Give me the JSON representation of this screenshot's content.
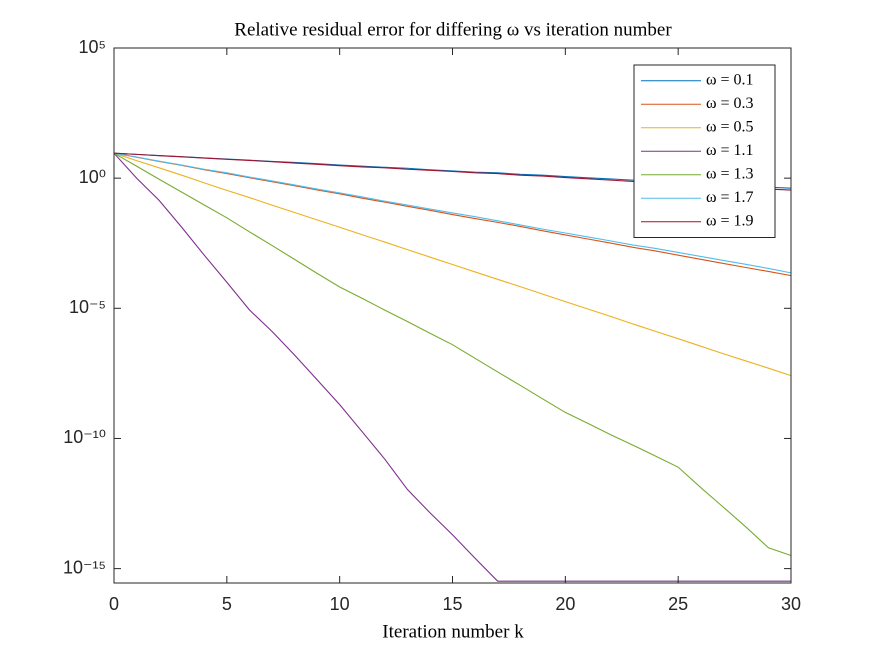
{
  "chart_data": {
    "type": "line",
    "title": "Relative residual error for differing ω vs iteration number",
    "xlabel": "Iteration number k",
    "x": [
      0,
      1,
      2,
      3,
      4,
      5,
      6,
      7,
      8,
      9,
      10,
      11,
      12,
      13,
      14,
      15,
      16,
      17,
      18,
      19,
      20,
      21,
      22,
      23,
      24,
      25,
      26,
      27,
      28,
      29,
      30
    ],
    "xlim": [
      0,
      30
    ],
    "xticks": [
      0,
      5,
      10,
      15,
      20,
      25,
      30
    ],
    "ylim": [
      2.8e-16,
      100000
    ],
    "yscale": "log",
    "yticks": [
      {
        "value": 100000,
        "label": "10⁵"
      },
      {
        "value": 1,
        "label": "10⁰"
      },
      {
        "value": 1e-05,
        "label": "10⁻⁵"
      },
      {
        "value": 1e-10,
        "label": "10⁻¹⁰"
      },
      {
        "value": 1e-15,
        "label": "10⁻¹⁵"
      }
    ],
    "grid": false,
    "legend": "upper right",
    "series": [
      {
        "name": "ω = 0.1",
        "color": "#0072BD",
        "values": [
          9.1,
          8.2,
          7.4,
          6.7,
          6.0,
          5.4,
          4.9,
          4.4,
          4.0,
          3.6,
          3.2,
          2.9,
          2.6,
          2.4,
          2.1,
          1.9,
          1.7,
          1.6,
          1.4,
          1.3,
          1.15,
          1.03,
          0.93,
          0.84,
          0.76,
          0.68,
          0.62,
          0.56,
          0.5,
          0.45,
          0.41
        ]
      },
      {
        "name": "ω = 0.3",
        "color": "#D95319",
        "values": [
          9.1,
          6.4,
          4.4,
          3.1,
          2.1,
          1.5,
          1.04,
          0.73,
          0.51,
          0.35,
          0.25,
          0.17,
          0.12,
          0.083,
          0.058,
          0.04,
          0.028,
          0.02,
          0.014,
          0.0095,
          0.0066,
          0.0046,
          0.0032,
          0.0022,
          0.0016,
          0.0011,
          0.00076,
          0.00053,
          0.00037,
          0.00026,
          0.00018
        ]
      },
      {
        "name": "ω = 0.5",
        "color": "#EDB120",
        "values": [
          9.1,
          4.7,
          2.5,
          1.3,
          0.66,
          0.34,
          0.18,
          0.092,
          0.048,
          0.025,
          0.013,
          0.0067,
          0.0035,
          0.0018,
          0.00093,
          0.00048,
          0.00025,
          0.00013,
          6.8e-05,
          3.5e-05,
          1.8e-05,
          9.4e-06,
          4.9e-06,
          2.5e-06,
          1.3e-06,
          6.8e-07,
          3.5e-07,
          1.8e-07,
          9.5e-08,
          5e-08,
          2.6e-08
        ]
      },
      {
        "name": "ω = 1.1",
        "color": "#7E2F8E",
        "values": [
          9.1,
          1.0,
          0.14,
          0.013,
          0.0011,
          0.0001,
          8.7e-06,
          1.3e-06,
          1.6e-07,
          1.8e-08,
          2e-09,
          1.8e-10,
          1.6e-11,
          1.1e-12,
          1.4e-13,
          2e-14,
          2.5e-15,
          3.3e-16,
          3.3e-16,
          3.3e-16,
          3.3e-16,
          3.3e-16,
          3.3e-16,
          3.3e-16,
          3.3e-16,
          3.3e-16,
          3.3e-16,
          3.3e-16,
          3.3e-16,
          3.3e-16,
          3.3e-16
        ]
      },
      {
        "name": "ω = 1.3",
        "color": "#77AC30",
        "values": [
          9.1,
          2.9,
          0.91,
          0.29,
          0.093,
          0.03,
          0.0087,
          0.0026,
          0.00076,
          0.00022,
          6.6e-05,
          2.4e-05,
          8.5e-06,
          3.1e-06,
          1.1e-06,
          4e-07,
          1.2e-07,
          3.6e-08,
          1.1e-08,
          3.3e-09,
          1e-09,
          3.8e-10,
          1.4e-10,
          5.5e-11,
          2.1e-11,
          7.9e-12,
          1.3e-12,
          2.3e-13,
          4e-14,
          6.3e-15,
          3.2e-15
        ]
      },
      {
        "name": "ω = 1.7",
        "color": "#4DBEEE",
        "values": [
          9.1,
          6.5,
          4.5,
          3.2,
          2.2,
          1.6,
          1.1,
          0.78,
          0.55,
          0.38,
          0.27,
          0.19,
          0.13,
          0.093,
          0.065,
          0.046,
          0.033,
          0.023,
          0.016,
          0.011,
          0.0078,
          0.0055,
          0.0039,
          0.0027,
          0.002,
          0.0014,
          0.00098,
          0.00069,
          0.00049,
          0.00034,
          0.00023
        ]
      },
      {
        "name": "ω = 1.9",
        "color": "#A2142F",
        "values": [
          9.1,
          8.2,
          7.3,
          6.6,
          5.9,
          5.3,
          4.8,
          4.3,
          3.8,
          3.4,
          3.0,
          2.7,
          2.5,
          2.2,
          2.0,
          1.8,
          1.6,
          1.5,
          1.3,
          1.2,
          1.05,
          0.94,
          0.84,
          0.75,
          0.67,
          0.6,
          0.54,
          0.48,
          0.43,
          0.38,
          0.35
        ]
      }
    ]
  }
}
